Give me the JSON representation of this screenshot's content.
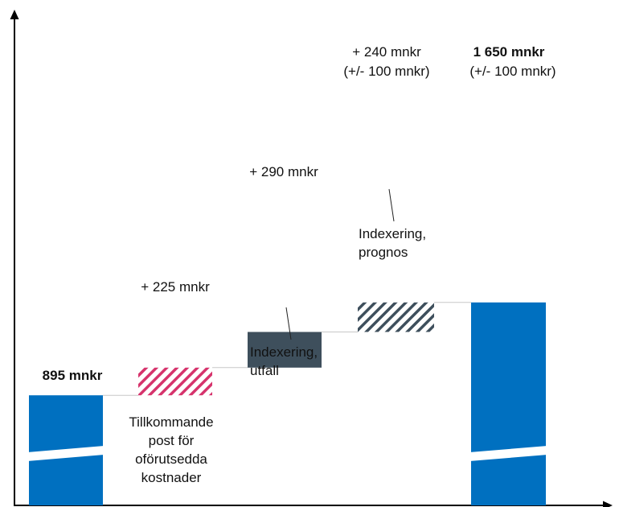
{
  "chart_data": {
    "type": "bar",
    "subtype": "waterfall",
    "value_unit": "mnkr",
    "axis_break": true,
    "grid": false,
    "legend": "none",
    "ylim": [
      0,
      1900
    ],
    "steps": [
      {
        "role": "total",
        "start": 0,
        "end": 895,
        "value_label": "895 mnkr",
        "value_sublabel": "",
        "category_label": [
          "",
          ""
        ],
        "pattern": "solid",
        "color": "#0070C0",
        "bold": true
      },
      {
        "role": "increase",
        "start": 895,
        "end": 1120,
        "value_label": "+ 225 mnkr",
        "value_sublabel": "",
        "category_label": [
          "Tillkommande",
          "post för",
          "oförutsedda",
          "kostnader"
        ],
        "pattern": "hatch",
        "color": "#D6336C",
        "bold": false
      },
      {
        "role": "increase",
        "start": 1120,
        "end": 1410,
        "value_label": "+ 290 mnkr",
        "value_sublabel": "",
        "category_label": [
          "Indexering,",
          "utfall"
        ],
        "pattern": "solid",
        "color": "#3E4F5C",
        "bold": false
      },
      {
        "role": "increase",
        "start": 1410,
        "end": 1650,
        "value_label": "+ 240 mnkr",
        "value_sublabel": "(+/- 100 mnkr)",
        "category_label": [
          "Indexering,",
          "prognos"
        ],
        "pattern": "hatch",
        "color": "#3E4F5C",
        "bold": false
      },
      {
        "role": "total",
        "start": 0,
        "end": 1650,
        "value_label": "1 650 mnkr",
        "value_sublabel": "(+/- 100 mnkr)",
        "category_label": [
          "",
          ""
        ],
        "pattern": "solid",
        "color": "#0070C0",
        "bold": true
      }
    ]
  }
}
